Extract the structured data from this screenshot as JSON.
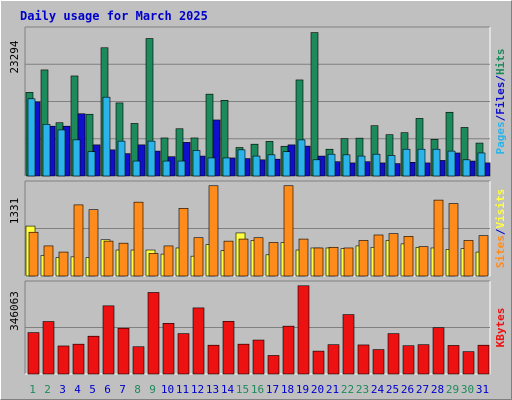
{
  "title": "Daily usage for March 2025",
  "colors": {
    "hits": "#1d8a5c",
    "files": "#1010cc",
    "pages": "#2ab4ea",
    "visits": "#ffff40",
    "sites": "#ff8c1a",
    "kbytes": "#ee1111",
    "title": "#0000cc",
    "weekend_label": "#1d8a5c",
    "weekday_label": "#0000cc"
  },
  "chart_data": [
    {
      "type": "bar",
      "name": "hits-files-pages",
      "ymax_label": "23294",
      "ymax": 23294,
      "legend": [
        "Pages",
        "/",
        "Files",
        "/",
        "Hits"
      ],
      "categories": [
        "1",
        "2",
        "3",
        "4",
        "5",
        "6",
        "7",
        "8",
        "9",
        "10",
        "11",
        "12",
        "13",
        "14",
        "15",
        "16",
        "17",
        "18",
        "19",
        "20",
        "21",
        "22",
        "23",
        "24",
        "25",
        "26",
        "27",
        "28",
        "29",
        "30",
        "31"
      ],
      "weekend_days": [
        "1",
        "2",
        "8",
        "9",
        "15",
        "16",
        "22",
        "23",
        "29",
        "30"
      ],
      "series": [
        {
          "name": "Hits",
          "values": [
            13430,
            17040,
            8560,
            16070,
            9920,
            20600,
            11740,
            8440,
            22080,
            6110,
            7590,
            6110,
            13150,
            12160,
            4580,
            5110,
            5560,
            4780,
            15430,
            23040,
            4300,
            6000,
            6080,
            8080,
            6640,
            6960,
            9250,
            5890,
            10240,
            7800,
            5290
          ]
        },
        {
          "name": "Files",
          "values": [
            11900,
            8000,
            8000,
            10000,
            5000,
            4200,
            3600,
            5000,
            4000,
            3100,
            5400,
            3200,
            9000,
            2900,
            2800,
            2600,
            2700,
            5000,
            4800,
            3200,
            2300,
            2100,
            2300,
            2100,
            2000,
            2200,
            2100,
            2500,
            3700,
            2400,
            2100
          ]
        },
        {
          "name": "Pages",
          "values": [
            12400,
            8300,
            7400,
            5800,
            3900,
            12660,
            5600,
            2400,
            5600,
            2400,
            2400,
            4100,
            2900,
            2900,
            4200,
            3200,
            3400,
            3900,
            5800,
            2600,
            3500,
            3400,
            3200,
            3500,
            3300,
            4300,
            4300,
            4300,
            4000,
            2600,
            3700
          ]
        }
      ]
    },
    {
      "type": "bar",
      "name": "visits-sites",
      "ymax_label": "1331",
      "ymax": 1331,
      "legend": [
        "Sites",
        "/",
        "Visits"
      ],
      "categories": [
        "1",
        "2",
        "3",
        "4",
        "5",
        "6",
        "7",
        "8",
        "9",
        "10",
        "11",
        "12",
        "13",
        "14",
        "15",
        "16",
        "17",
        "18",
        "19",
        "20",
        "21",
        "22",
        "23",
        "24",
        "25",
        "26",
        "27",
        "28",
        "29",
        "30",
        "31"
      ],
      "series": [
        {
          "name": "Visits",
          "values": [
            730,
            300,
            270,
            280,
            270,
            530,
            380,
            380,
            380,
            320,
            410,
            290,
            460,
            370,
            630,
            520,
            310,
            490,
            380,
            410,
            410,
            400,
            440,
            420,
            520,
            470,
            420,
            410,
            390,
            400,
            350
          ]
        },
        {
          "name": "Sites",
          "values": [
            640,
            440,
            350,
            1040,
            970,
            510,
            480,
            1080,
            330,
            440,
            990,
            560,
            1320,
            510,
            540,
            560,
            490,
            1320,
            540,
            410,
            420,
            410,
            520,
            600,
            620,
            580,
            430,
            1110,
            1060,
            520,
            590
          ]
        }
      ]
    },
    {
      "type": "bar",
      "name": "kbytes",
      "ymax_label": "346063",
      "ymax": 346063,
      "legend": [
        "KBytes"
      ],
      "categories": [
        "1",
        "2",
        "3",
        "4",
        "5",
        "6",
        "7",
        "8",
        "9",
        "10",
        "11",
        "12",
        "13",
        "14",
        "15",
        "16",
        "17",
        "18",
        "19",
        "20",
        "21",
        "22",
        "23",
        "24",
        "25",
        "26",
        "27",
        "28",
        "29",
        "30",
        "31"
      ],
      "series": [
        {
          "name": "KBytes",
          "values": [
            161000,
            204000,
            109000,
            116000,
            147000,
            265000,
            178000,
            106000,
            317000,
            197000,
            157000,
            257000,
            112000,
            205000,
            116000,
            132000,
            72000,
            186000,
            343000,
            89000,
            114000,
            231000,
            113000,
            95000,
            157000,
            110000,
            114000,
            180000,
            111000,
            87000,
            112000
          ]
        }
      ]
    }
  ]
}
